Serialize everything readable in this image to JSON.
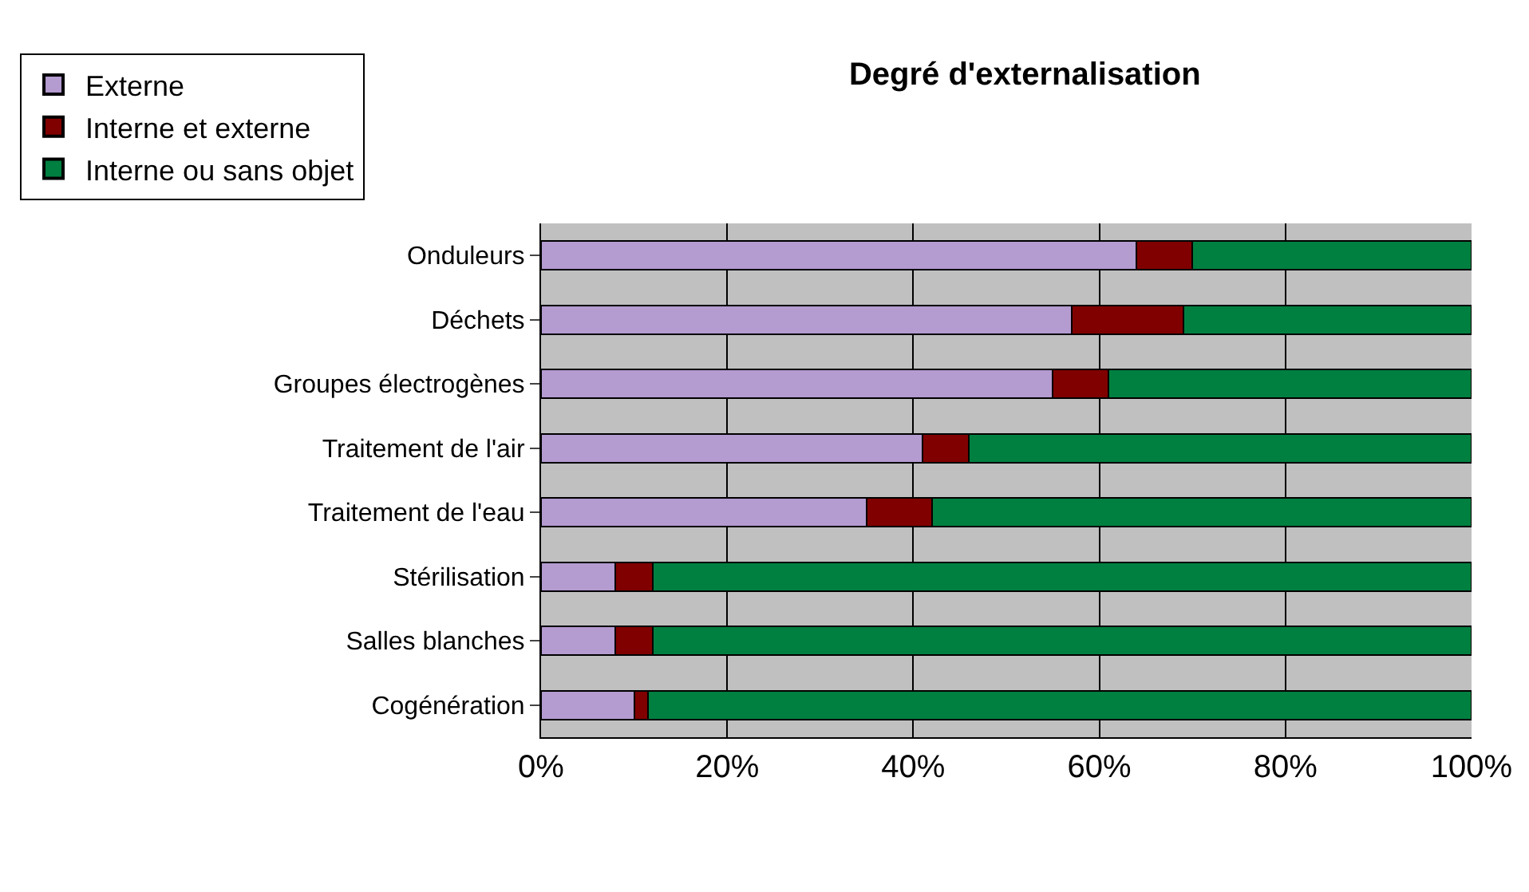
{
  "chart_data": {
    "type": "bar",
    "title": "Degré d'externalisation",
    "orientation": "horizontal",
    "stacked": true,
    "categories": [
      "Onduleurs",
      "Déchets",
      "Groupes électrogènes",
      "Traitement de l'air",
      "Traitement de l'eau",
      "Stérilisation",
      "Salles blanches",
      "Cogénération"
    ],
    "series": [
      {
        "name": "Externe",
        "color": "#b49bd0",
        "values": [
          64,
          57,
          55,
          41,
          35,
          8,
          8,
          10
        ]
      },
      {
        "name": "Interne et externe",
        "color": "#800000",
        "values": [
          6,
          12,
          6,
          5,
          7,
          4,
          4,
          1.5
        ]
      },
      {
        "name": "Interne ou sans objet",
        "color": "#008040",
        "values": [
          30,
          31,
          39,
          54,
          58,
          88,
          88,
          88.5
        ]
      }
    ],
    "xlim": [
      0,
      100
    ],
    "xticks": [
      {
        "value": 0,
        "label": "0%"
      },
      {
        "value": 20,
        "label": "20%"
      },
      {
        "value": 40,
        "label": "40%"
      },
      {
        "value": 60,
        "label": "60%"
      },
      {
        "value": 80,
        "label": "80%"
      },
      {
        "value": 100,
        "label": "100%"
      }
    ],
    "grid": "x",
    "legend": "top left"
  }
}
